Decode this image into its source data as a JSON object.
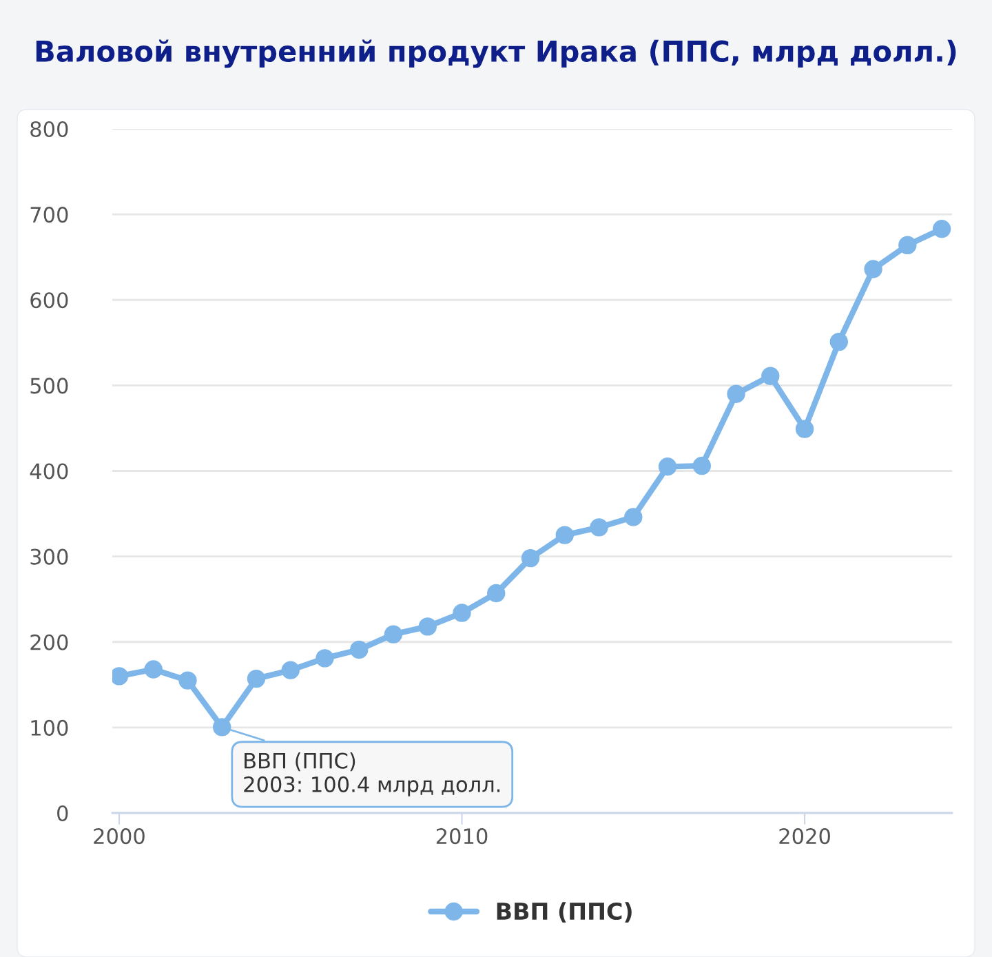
{
  "chart_data": {
    "type": "line",
    "title": "Валовой внутренний продукт Ирака (ППС, млрд долл.)",
    "x": [
      2000,
      2001,
      2002,
      2003,
      2004,
      2005,
      2006,
      2007,
      2008,
      2009,
      2010,
      2011,
      2012,
      2013,
      2014,
      2015,
      2016,
      2017,
      2018,
      2019,
      2020,
      2021,
      2022,
      2023,
      2024
    ],
    "series": [
      {
        "name": "ВВП (ППС)",
        "color": "#7eb6e9",
        "values": [
          160,
          168,
          155,
          100.4,
          157,
          167,
          181,
          191,
          209,
          218,
          234,
          257,
          298,
          325,
          334,
          346,
          405,
          406,
          490,
          511,
          449,
          551,
          636,
          664,
          683
        ]
      }
    ],
    "xlim": [
      1999.8,
      2024.3
    ],
    "xticks": [
      2000,
      2010,
      2020
    ],
    "ylim": [
      0,
      800
    ],
    "yticks": [
      0,
      100,
      200,
      300,
      400,
      500,
      600,
      700,
      800
    ],
    "grid": "y",
    "legend": "bottom",
    "marker": "circle",
    "line_style": "solid",
    "annotations": [
      {
        "text": "ВВП (ППС)\n2003: 100.4 млрд долл.",
        "x": 2003,
        "y": 100.4
      }
    ]
  }
}
